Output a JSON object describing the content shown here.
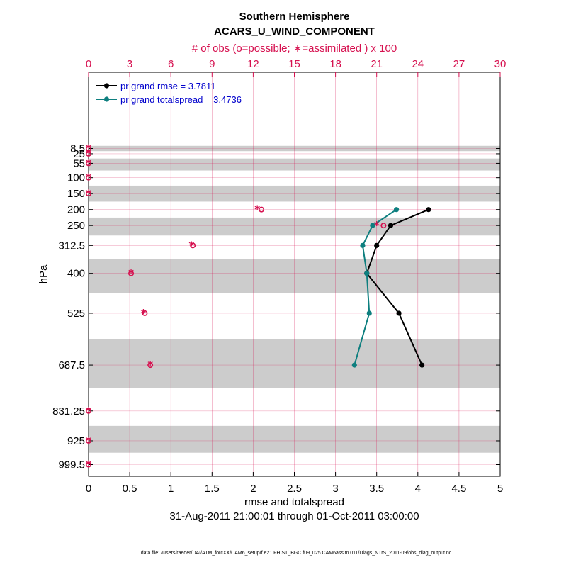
{
  "chart_data": {
    "type": "line",
    "title": "Southern Hemisphere",
    "subtitle": "ACARS_U_WIND_COMPONENT",
    "top_axis_label": "# of obs (o=possible; ∗=assimilated ) x 100",
    "xlabel": "rmse and totalspread",
    "ylabel": "hPa",
    "date_range": "31-Aug-2011 21:00:01 through 01-Oct-2011 03:00:00",
    "footer": "data file: /Users/raeder/DAI/ATM_forcXX/CAM6_setup/f.e21.FHIST_BGC.f09_025.CAM6assim.011/Diags_NTrS_2011-09/obs_diag_output.nc",
    "xlim": [
      0,
      5
    ],
    "x_ticks": [
      "0",
      "0.5",
      "1",
      "1.5",
      "2",
      "2.5",
      "3",
      "3.5",
      "4",
      "4.5",
      "5"
    ],
    "top_xlim": [
      0,
      30
    ],
    "top_ticks": [
      "0",
      "3",
      "6",
      "9",
      "12",
      "15",
      "18",
      "21",
      "24",
      "27",
      "30"
    ],
    "y_ticks": [
      "8.5",
      "25",
      "55",
      "100",
      "150",
      "200",
      "250",
      "312.5",
      "400",
      "525",
      "687.5",
      "831.25",
      "925",
      "999.5"
    ],
    "levels": [
      8.5,
      25,
      55,
      100,
      150,
      200,
      250,
      312.5,
      400,
      525,
      687.5,
      831.25,
      925,
      999.5
    ],
    "series": [
      {
        "name": "pr grand rmse",
        "legend": "pr grand rmse = 3.7811",
        "color": "#000000",
        "levels": [
          200,
          250,
          312.5,
          400,
          525,
          687.5
        ],
        "values": [
          4.13,
          3.67,
          3.5,
          3.38,
          3.77,
          4.05
        ]
      },
      {
        "name": "pr grand totalspread",
        "legend": "pr grand totalspread = 3.4736",
        "color": "#0e7f7f",
        "levels": [
          200,
          250,
          312.5,
          400,
          525,
          687.5
        ],
        "values": [
          3.74,
          3.45,
          3.33,
          3.38,
          3.41,
          3.23
        ]
      }
    ],
    "obs_counts": {
      "color": "#d6104f",
      "levels": [
        8.5,
        25,
        55,
        100,
        150,
        200,
        250,
        312.5,
        400,
        525,
        687.5,
        831.25,
        925,
        999.5
      ],
      "possible": [
        0,
        0,
        0,
        0,
        0,
        12.6,
        21.5,
        7.6,
        3.1,
        4.1,
        4.5,
        0,
        0,
        0
      ],
      "assimilated": [
        0,
        0,
        0,
        0,
        0,
        12.3,
        21.0,
        7.5,
        3.1,
        4.0,
        4.5,
        0,
        0,
        0
      ]
    }
  }
}
